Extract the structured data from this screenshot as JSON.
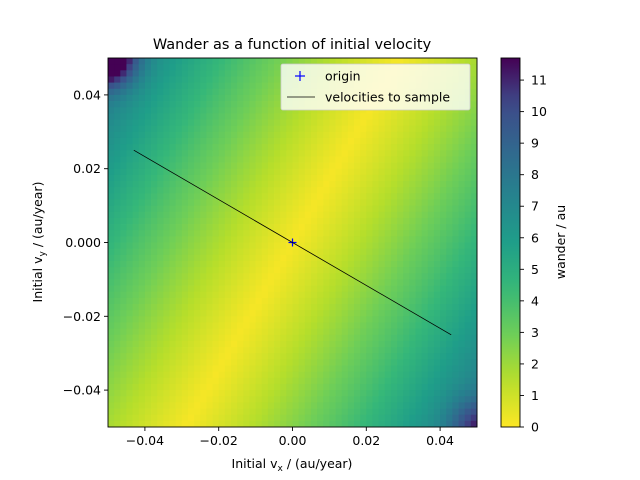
{
  "chart_data": {
    "type": "heatmap",
    "title": "Wander as a function of initial velocity",
    "xlabel": {
      "prefix": "Initial v",
      "sub": "x",
      "suffix": " / (au/year)"
    },
    "ylabel": {
      "prefix": "Initial v",
      "sub": "y",
      "suffix": " / (au/year)"
    },
    "xlim": [
      -0.05,
      0.05
    ],
    "ylim": [
      -0.05,
      0.05
    ],
    "x_ticks": [
      -0.04,
      -0.02,
      0.0,
      0.02,
      0.04
    ],
    "x_tick_labels": [
      "−0.04",
      "−0.02",
      "0.00",
      "0.02",
      "0.04"
    ],
    "y_ticks": [
      -0.04,
      -0.02,
      0.0,
      0.02,
      0.04
    ],
    "y_tick_labels": [
      "−0.04",
      "−0.02",
      "0.000",
      "0.02",
      "0.04"
    ],
    "grid": false,
    "colormap": "viridis_r",
    "colorbar": {
      "label": "wander / au",
      "range": [
        0,
        11.7
      ],
      "ticks": [
        0,
        1,
        2,
        3,
        4,
        5,
        6,
        7,
        8,
        9,
        10,
        11
      ],
      "tick_labels": [
        "0",
        "1",
        "2",
        "3",
        "4",
        "5",
        "6",
        "7",
        "8",
        "9",
        "10",
        "11"
      ]
    },
    "field": {
      "description_values": "wander is minimal along the diagonal line through the origin rising to the upper right, grows toward the top-left and bottom-right corners",
      "samples": [
        {
          "vx": -0.05,
          "vy": 0.05,
          "wander": 11.5
        },
        {
          "vx": -0.045,
          "vy": 0.045,
          "wander": 10.5
        },
        {
          "vx": 0.05,
          "vy": -0.05,
          "wander": 8.8
        },
        {
          "vx": 0.0,
          "vy": 0.0,
          "wander": 0.3
        },
        {
          "vx": -0.05,
          "vy": -0.05,
          "wander": 1.5
        },
        {
          "vx": 0.05,
          "vy": 0.05,
          "wander": 1.5
        }
      ]
    },
    "series": [
      {
        "name": "origin",
        "kind": "marker",
        "marker": "+",
        "color": "#0000ff",
        "points": [
          [
            0.0,
            0.0
          ]
        ]
      },
      {
        "name": "velocities to sample",
        "kind": "line",
        "color": "#000000",
        "points": [
          [
            -0.043,
            0.025
          ],
          [
            0.043,
            -0.025
          ]
        ]
      }
    ],
    "legend_placement": "top-right"
  }
}
